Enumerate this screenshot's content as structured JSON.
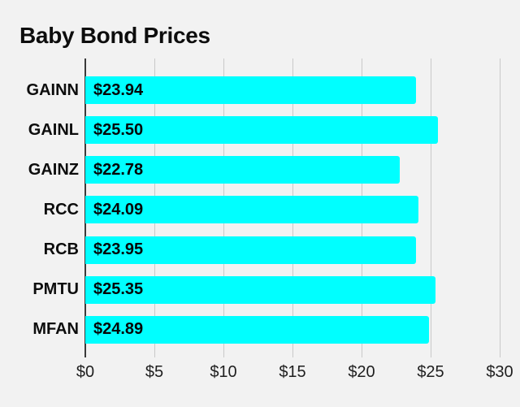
{
  "chart_data": {
    "type": "bar",
    "orientation": "horizontal",
    "title": "Baby Bond Prices",
    "categories": [
      "GAINN",
      "GAINL",
      "GAINZ",
      "RCC",
      "RCB",
      "PMTU",
      "MFAN"
    ],
    "values": [
      23.94,
      25.5,
      22.78,
      24.09,
      23.95,
      25.35,
      24.89
    ],
    "value_labels": [
      "$23.94",
      "$25.50",
      "$22.78",
      "$24.09",
      "$23.95",
      "$25.35",
      "$24.89"
    ],
    "x_ticks": [
      "$0",
      "$5",
      "$10",
      "$15",
      "$20",
      "$25",
      "$30"
    ],
    "xlim": [
      0,
      30
    ],
    "grid": true,
    "legend": false,
    "colors": {
      "bar": "#00ffff",
      "background": "#f2f2f2",
      "gridline": "#c9c9c9",
      "zero_line": "#3a3a3a",
      "text": "#0d0d0d"
    }
  }
}
